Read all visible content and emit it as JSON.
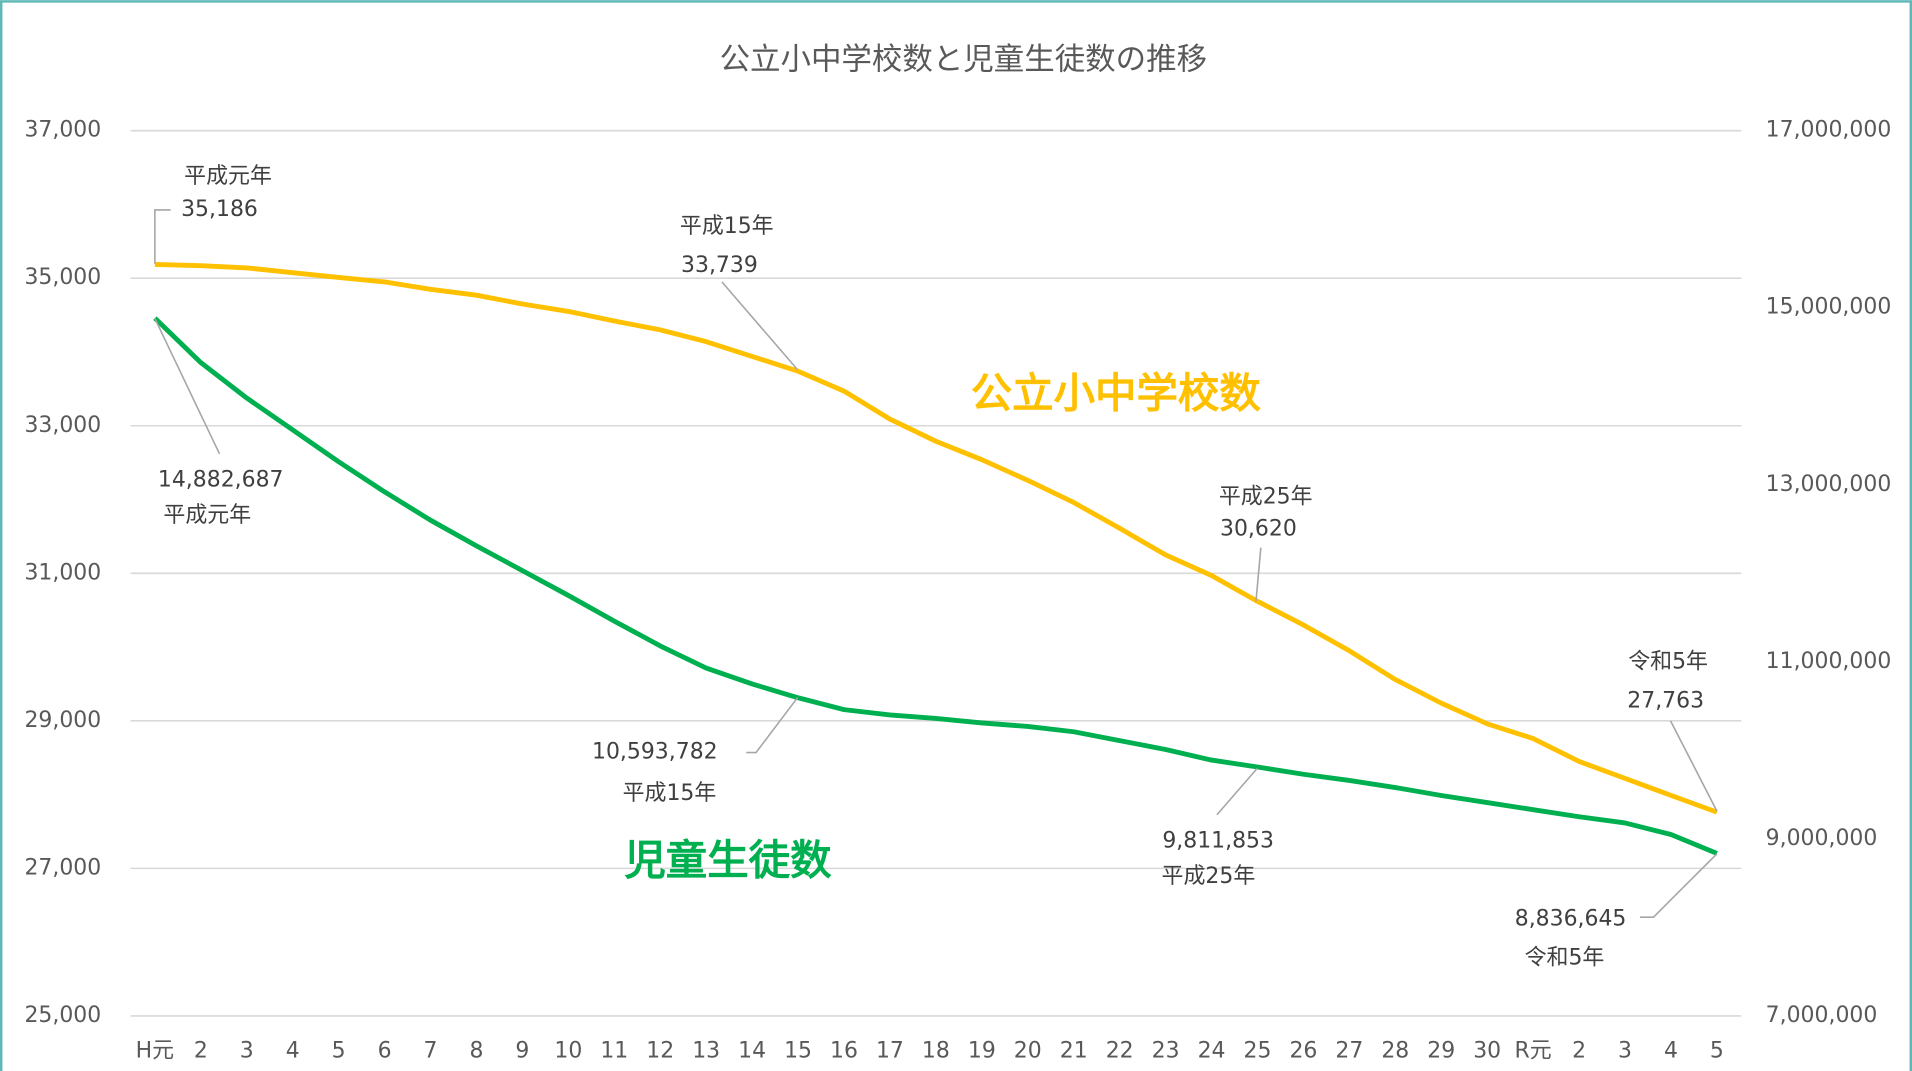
{
  "chart_data": {
    "type": "line",
    "title": "公立小中学校数と児童生徒数の推移",
    "categories": [
      "H元",
      "2",
      "3",
      "4",
      "5",
      "6",
      "7",
      "8",
      "9",
      "10",
      "11",
      "12",
      "13",
      "14",
      "15",
      "16",
      "17",
      "18",
      "19",
      "20",
      "21",
      "22",
      "23",
      "24",
      "25",
      "26",
      "27",
      "28",
      "29",
      "30",
      "R元",
      "2",
      "3",
      "4",
      "5"
    ],
    "ylim": [
      25000,
      37000
    ],
    "yticks": [
      {
        "value": 25000,
        "label": "25,000"
      },
      {
        "value": 27000,
        "label": "27,000"
      },
      {
        "value": 29000,
        "label": "29,000"
      },
      {
        "value": 31000,
        "label": "31,000"
      },
      {
        "value": 33000,
        "label": "33,000"
      },
      {
        "value": 35000,
        "label": "35,000"
      },
      {
        "value": 37000,
        "label": "37,000"
      }
    ],
    "y2lim": [
      7000000,
      17000000
    ],
    "y2ticks": [
      {
        "value": 7000000,
        "label": "7,000,000"
      },
      {
        "value": 9000000,
        "label": "9,000,000"
      },
      {
        "value": 11000000,
        "label": "11,000,000"
      },
      {
        "value": 13000000,
        "label": "13,000,000"
      },
      {
        "value": 15000000,
        "label": "15,000,000"
      },
      {
        "value": 17000000,
        "label": "17,000,000"
      }
    ],
    "grid": true,
    "series": [
      {
        "name": "公立小中学校数",
        "color": "#FFC000",
        "axis": "y",
        "values": [
          35186,
          35170,
          35140,
          35075,
          35010,
          34950,
          34850,
          34770,
          34650,
          34550,
          34420,
          34300,
          34140,
          33940,
          33739,
          33470,
          33090,
          32790,
          32540,
          32260,
          31960,
          31610,
          31250,
          30970,
          30620,
          30300,
          29950,
          29560,
          29240,
          28960,
          28760,
          28450,
          28220,
          27990,
          27763
        ],
        "value_labels": [
          "35,186",
          null,
          null,
          null,
          null,
          null,
          null,
          null,
          null,
          null,
          null,
          null,
          null,
          null,
          "33,739",
          null,
          null,
          null,
          null,
          null,
          null,
          null,
          null,
          null,
          "30,620",
          null,
          null,
          null,
          null,
          null,
          null,
          null,
          null,
          null,
          "27,763"
        ],
        "point_labels": [
          "平成元年",
          null,
          null,
          null,
          null,
          null,
          null,
          null,
          null,
          null,
          null,
          null,
          null,
          null,
          "平成15年",
          null,
          null,
          null,
          null,
          null,
          null,
          null,
          null,
          null,
          "平成25年",
          null,
          null,
          null,
          null,
          null,
          null,
          null,
          null,
          null,
          "令和5年"
        ]
      },
      {
        "name": "児童生徒数",
        "color": "#00B050",
        "axis": "y2",
        "values": [
          14882687,
          14380000,
          13980000,
          13620000,
          13260000,
          12920000,
          12600000,
          12310000,
          12030000,
          11750000,
          11460000,
          11180000,
          10930000,
          10750000,
          10593782,
          10460000,
          10400000,
          10360000,
          10310000,
          10270000,
          10210000,
          10110000,
          10010000,
          9890000,
          9811853,
          9730000,
          9660000,
          9580000,
          9490000,
          9410000,
          9330000,
          9250000,
          9180000,
          9050000,
          8836645
        ],
        "value_labels": [
          "14,882,687",
          null,
          null,
          null,
          null,
          null,
          null,
          null,
          null,
          null,
          null,
          null,
          null,
          null,
          "10,593,782",
          null,
          null,
          null,
          null,
          null,
          null,
          null,
          null,
          null,
          "9,811,853",
          null,
          null,
          null,
          null,
          null,
          null,
          null,
          null,
          null,
          "8,836,645"
        ],
        "point_labels": [
          "平成元年",
          null,
          null,
          null,
          null,
          null,
          null,
          null,
          null,
          null,
          null,
          null,
          null,
          null,
          "平成15年",
          null,
          null,
          null,
          null,
          null,
          null,
          null,
          null,
          null,
          "平成25年",
          null,
          null,
          null,
          null,
          null,
          null,
          null,
          null,
          null,
          "令和5年"
        ]
      }
    ]
  }
}
